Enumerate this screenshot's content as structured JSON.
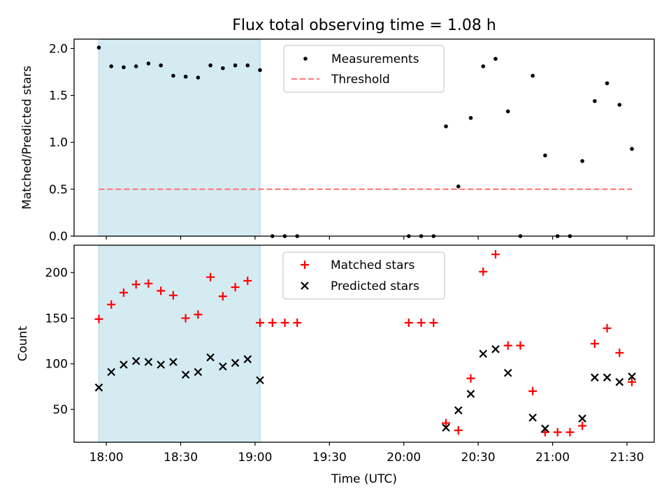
{
  "figure": {
    "title": "Flux total observing time = 1.08 h",
    "xlabel": "Time (UTC)"
  },
  "colors": {
    "shade": "#add8e6",
    "measurement": "#000000",
    "threshold": "#ff7f7f",
    "matched": "#ff0000",
    "predicted": "#000000"
  },
  "chart_data": [
    {
      "type": "scatter",
      "ylabel": "Matched/Predicted stars",
      "ylim": [
        0,
        2.1
      ],
      "xlim": [
        "17:47",
        "21:41"
      ],
      "y_ticks": [
        0.0,
        0.5,
        1.0,
        1.5,
        2.0
      ],
      "y_tick_labels": [
        "0.0",
        "0.5",
        "1.0",
        "1.5",
        "2.0"
      ],
      "shaded_region": [
        "17:57",
        "19:02"
      ],
      "legend": {
        "position": "top-center",
        "entries": [
          "Measurements",
          "Threshold"
        ]
      },
      "threshold": {
        "name": "Threshold",
        "y": 0.5,
        "x": [
          "17:57",
          "21:32"
        ]
      },
      "series": [
        {
          "name": "Measurements",
          "points": [
            [
              "17:57",
              2.01
            ],
            [
              "18:02",
              1.81
            ],
            [
              "18:07",
              1.8
            ],
            [
              "18:12",
              1.81
            ],
            [
              "18:17",
              1.84
            ],
            [
              "18:22",
              1.82
            ],
            [
              "18:27",
              1.71
            ],
            [
              "18:32",
              1.7
            ],
            [
              "18:37",
              1.69
            ],
            [
              "18:42",
              1.82
            ],
            [
              "18:47",
              1.79
            ],
            [
              "18:52",
              1.82
            ],
            [
              "18:57",
              1.82
            ],
            [
              "19:02",
              1.77
            ],
            [
              "19:07",
              0.0
            ],
            [
              "19:12",
              0.0
            ],
            [
              "19:17",
              0.0
            ],
            [
              "20:02",
              0.0
            ],
            [
              "20:07",
              0.0
            ],
            [
              "20:12",
              0.0
            ],
            [
              "20:17",
              1.17
            ],
            [
              "20:22",
              0.53
            ],
            [
              "20:27",
              1.26
            ],
            [
              "20:32",
              1.81
            ],
            [
              "20:37",
              1.89
            ],
            [
              "20:42",
              1.33
            ],
            [
              "20:47",
              0.0
            ],
            [
              "20:52",
              1.71
            ],
            [
              "20:57",
              0.86
            ],
            [
              "21:02",
              0.0
            ],
            [
              "21:07",
              0.0
            ],
            [
              "21:12",
              0.8
            ],
            [
              "21:17",
              1.44
            ],
            [
              "21:22",
              1.63
            ],
            [
              "21:27",
              1.4
            ],
            [
              "21:32",
              0.93
            ]
          ]
        }
      ]
    },
    {
      "type": "scatter",
      "ylabel": "Count",
      "ylim": [
        14,
        230
      ],
      "xlim": [
        "17:47",
        "21:41"
      ],
      "y_ticks": [
        50,
        100,
        150,
        200
      ],
      "y_tick_labels": [
        "50",
        "100",
        "150",
        "200"
      ],
      "x_ticks": [
        "18:00",
        "18:30",
        "19:00",
        "19:30",
        "20:00",
        "20:30",
        "21:00",
        "21:30"
      ],
      "shaded_region": [
        "17:57",
        "19:02"
      ],
      "legend": {
        "position": "top-center",
        "entries": [
          "Matched stars",
          "Predicted stars"
        ]
      },
      "series": [
        {
          "name": "Matched stars",
          "marker": "+",
          "points": [
            [
              "17:57",
              149
            ],
            [
              "18:02",
              165
            ],
            [
              "18:07",
              178
            ],
            [
              "18:12",
              187
            ],
            [
              "18:17",
              188
            ],
            [
              "18:22",
              180
            ],
            [
              "18:27",
              175
            ],
            [
              "18:32",
              150
            ],
            [
              "18:37",
              154
            ],
            [
              "18:42",
              195
            ],
            [
              "18:47",
              174
            ],
            [
              "18:52",
              184
            ],
            [
              "18:57",
              191
            ],
            [
              "19:02",
              145
            ],
            [
              "19:07",
              145
            ],
            [
              "19:12",
              145
            ],
            [
              "19:17",
              145
            ],
            [
              "20:02",
              145
            ],
            [
              "20:07",
              145
            ],
            [
              "20:12",
              145
            ],
            [
              "20:17",
              35
            ],
            [
              "20:22",
              27
            ],
            [
              "20:27",
              84
            ],
            [
              "20:32",
              201
            ],
            [
              "20:37",
              220
            ],
            [
              "20:42",
              120
            ],
            [
              "20:47",
              120
            ],
            [
              "20:52",
              70
            ],
            [
              "20:57",
              25
            ],
            [
              "21:02",
              25
            ],
            [
              "21:07",
              25
            ],
            [
              "21:12",
              32
            ],
            [
              "21:17",
              122
            ],
            [
              "21:22",
              139
            ],
            [
              "21:27",
              112
            ],
            [
              "21:32",
              80
            ]
          ]
        },
        {
          "name": "Predicted stars",
          "marker": "x",
          "points": [
            [
              "17:57",
              74
            ],
            [
              "18:02",
              91
            ],
            [
              "18:07",
              99
            ],
            [
              "18:12",
              103
            ],
            [
              "18:17",
              102
            ],
            [
              "18:22",
              99
            ],
            [
              "18:27",
              102
            ],
            [
              "18:32",
              88
            ],
            [
              "18:37",
              91
            ],
            [
              "18:42",
              107
            ],
            [
              "18:47",
              97
            ],
            [
              "18:52",
              101
            ],
            [
              "18:57",
              105
            ],
            [
              "19:02",
              82
            ],
            [
              "20:17",
              30
            ],
            [
              "20:22",
              49
            ],
            [
              "20:27",
              67
            ],
            [
              "20:32",
              111
            ],
            [
              "20:37",
              116
            ],
            [
              "20:42",
              90
            ],
            [
              "20:52",
              41
            ],
            [
              "20:57",
              29
            ],
            [
              "21:12",
              40
            ],
            [
              "21:17",
              85
            ],
            [
              "21:22",
              85
            ],
            [
              "21:27",
              80
            ],
            [
              "21:32",
              86
            ]
          ]
        }
      ]
    }
  ]
}
